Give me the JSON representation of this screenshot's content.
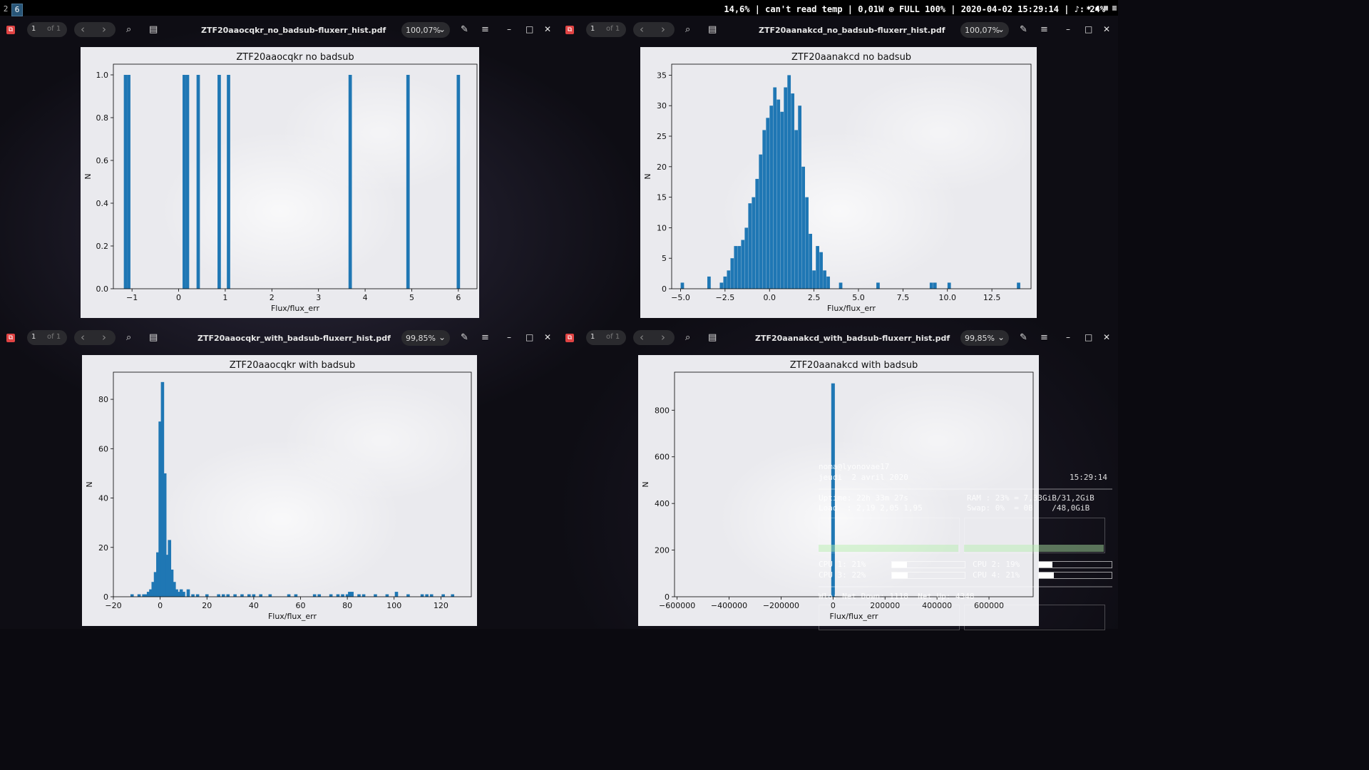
{
  "topbar": {
    "workspaces": [
      "2",
      "6"
    ],
    "status": "14,6% | can't read temp | 0,01W ⊕ FULL 100% | 2020-04-02 15:29:14 | ♪: 24%"
  },
  "windows": [
    {
      "page_num": "1",
      "page_of": "of 1",
      "filename": "ZTF20aaocqkr_no_badsub-fluxerr_hist.pdf",
      "zoom": "100,07%",
      "chart_data": {
        "type": "bar",
        "title": "ZTF20aaocqkr no badsub",
        "xlabel": "Flux/flux_err",
        "ylabel": "N",
        "xlim": [
          -1.4,
          6.4
        ],
        "ylim": [
          0,
          1.05
        ],
        "xticks": [
          -1,
          0,
          1,
          2,
          3,
          4,
          5,
          6
        ],
        "xtick_labels": [
          "−1",
          "0",
          "1",
          "2",
          "3",
          "4",
          "5",
          "6"
        ],
        "yticks": [
          0,
          0.2,
          0.4,
          0.6,
          0.8,
          1.0
        ],
        "ytick_labels": [
          "0.0",
          "0.2",
          "0.4",
          "0.6",
          "0.8",
          "1.0"
        ],
        "bin_width": 0.072,
        "bins": [
          [
            -1.14,
            1
          ],
          [
            -1.07,
            1
          ],
          [
            0.12,
            1
          ],
          [
            0.19,
            1
          ],
          [
            0.42,
            1
          ],
          [
            0.87,
            1
          ],
          [
            1.07,
            1
          ],
          [
            3.68,
            1
          ],
          [
            4.92,
            1
          ],
          [
            6.0,
            1
          ]
        ]
      }
    },
    {
      "page_num": "1",
      "page_of": "of 1",
      "filename": "ZTF20aanakcd_no_badsub-fluxerr_hist.pdf",
      "zoom": "100,07%",
      "chart_data": {
        "type": "bar",
        "title": "ZTF20aanakcd no badsub",
        "xlabel": "Flux/flux_err",
        "ylabel": "N",
        "xlim": [
          -5.5,
          14.7
        ],
        "ylim": [
          0,
          36.8
        ],
        "xticks": [
          -5,
          -2.5,
          0,
          2.5,
          5,
          7.5,
          10,
          12.5
        ],
        "xtick_labels": [
          "−5.0",
          "−2.5",
          "0.0",
          "2.5",
          "5.0",
          "7.5",
          "10.0",
          "12.5"
        ],
        "yticks": [
          0,
          5,
          10,
          15,
          20,
          25,
          30,
          35
        ],
        "ytick_labels": [
          "0",
          "5",
          "10",
          "15",
          "20",
          "25",
          "30",
          "35"
        ],
        "bin_width": 0.19,
        "bins": [
          [
            -4.9,
            1
          ],
          [
            -3.4,
            2
          ],
          [
            -2.7,
            1
          ],
          [
            -2.5,
            2
          ],
          [
            -2.3,
            3
          ],
          [
            -2.1,
            5
          ],
          [
            -1.9,
            7
          ],
          [
            -1.7,
            7
          ],
          [
            -1.5,
            8
          ],
          [
            -1.3,
            10
          ],
          [
            -1.1,
            14
          ],
          [
            -0.9,
            15
          ],
          [
            -0.7,
            18
          ],
          [
            -0.5,
            22
          ],
          [
            -0.3,
            26
          ],
          [
            -0.1,
            28
          ],
          [
            0.1,
            30
          ],
          [
            0.3,
            33
          ],
          [
            0.5,
            31
          ],
          [
            0.7,
            29
          ],
          [
            0.9,
            33
          ],
          [
            1.1,
            35
          ],
          [
            1.3,
            32
          ],
          [
            1.5,
            26
          ],
          [
            1.7,
            30
          ],
          [
            1.9,
            20
          ],
          [
            2.1,
            15
          ],
          [
            2.3,
            9
          ],
          [
            2.5,
            3
          ],
          [
            2.7,
            7
          ],
          [
            2.9,
            6
          ],
          [
            3.1,
            3
          ],
          [
            3.3,
            2
          ],
          [
            4.0,
            1
          ],
          [
            6.1,
            1
          ],
          [
            9.1,
            1
          ],
          [
            9.3,
            1
          ],
          [
            10.1,
            1
          ],
          [
            14.0,
            1
          ]
        ]
      }
    },
    {
      "page_num": "1",
      "page_of": "of 1",
      "filename": "ZTF20aaocqkr_with_badsub-fluxerr_hist.pdf",
      "zoom": "99,85%",
      "chart_data": {
        "type": "bar",
        "title": "ZTF20aaocqkr with badsub",
        "xlabel": "Flux/flux_err",
        "ylabel": "N",
        "xlim": [
          -20,
          133
        ],
        "ylim": [
          0,
          91
        ],
        "xticks": [
          -20,
          0,
          20,
          40,
          60,
          80,
          100,
          120
        ],
        "xtick_labels": [
          "−20",
          "0",
          "20",
          "40",
          "60",
          "80",
          "100",
          "120"
        ],
        "yticks": [
          0,
          20,
          40,
          60,
          80
        ],
        "ytick_labels": [
          "0",
          "20",
          "40",
          "60",
          "80"
        ],
        "bin_width": 1.4,
        "bins": [
          [
            -12,
            1
          ],
          [
            -9,
            1
          ],
          [
            -7,
            1
          ],
          [
            -6,
            1
          ],
          [
            -5,
            2
          ],
          [
            -4,
            3
          ],
          [
            -3,
            6
          ],
          [
            -2,
            10
          ],
          [
            -1,
            18
          ],
          [
            0,
            71
          ],
          [
            1,
            87
          ],
          [
            2,
            50
          ],
          [
            3,
            17
          ],
          [
            4,
            23
          ],
          [
            5,
            11
          ],
          [
            6,
            6
          ],
          [
            7,
            3
          ],
          [
            8,
            2
          ],
          [
            9,
            3
          ],
          [
            10,
            2
          ],
          [
            12,
            3
          ],
          [
            14,
            1
          ],
          [
            16,
            1
          ],
          [
            20,
            1
          ],
          [
            25,
            1
          ],
          [
            27,
            1
          ],
          [
            29,
            1
          ],
          [
            32,
            1
          ],
          [
            35,
            1
          ],
          [
            38,
            1
          ],
          [
            40,
            1
          ],
          [
            43,
            1
          ],
          [
            47,
            1
          ],
          [
            55,
            1
          ],
          [
            58,
            1
          ],
          [
            66,
            1
          ],
          [
            68,
            1
          ],
          [
            73,
            1
          ],
          [
            76,
            1
          ],
          [
            78,
            1
          ],
          [
            80,
            1
          ],
          [
            81,
            2
          ],
          [
            82,
            2
          ],
          [
            85,
            1
          ],
          [
            87,
            1
          ],
          [
            92,
            1
          ],
          [
            97,
            1
          ],
          [
            101,
            2
          ],
          [
            106,
            1
          ],
          [
            112,
            1
          ],
          [
            114,
            1
          ],
          [
            116,
            1
          ],
          [
            121,
            1
          ],
          [
            125,
            1
          ]
        ]
      }
    },
    {
      "page_num": "1",
      "page_of": "of 1",
      "filename": "ZTF20aanakcd_with_badsub-fluxerr_hist.pdf",
      "zoom": "99,85%",
      "chart_data": {
        "type": "bar",
        "title": "ZTF20aanakcd with badsub",
        "xlabel": "Flux/flux_err",
        "ylabel": "N",
        "xlim": [
          -610000,
          770000
        ],
        "ylim": [
          0,
          963
        ],
        "xticks": [
          -600000,
          -400000,
          -200000,
          0,
          200000,
          400000,
          600000
        ],
        "xtick_labels": [
          "−600000",
          "−400000",
          "−200000",
          "0",
          "200000",
          "400000",
          "600000"
        ],
        "yticks": [
          0,
          200,
          400,
          600,
          800
        ],
        "ytick_labels": [
          "0",
          "200",
          "400",
          "600",
          "800"
        ],
        "bin_width": 13800,
        "bins": [
          [
            0,
            915
          ],
          [
            -13800,
            2
          ],
          [
            13800,
            1
          ]
        ]
      }
    }
  ],
  "conky": {
    "user_host": "noma@lyonovae17",
    "date": "jeudi  2 avril 2020",
    "time": "15:29:14",
    "uptime": "Uptime: 22h 33m 27s",
    "load": "Load  : 2,19 2,05 1,95",
    "ram": "RAM : 23% = 7,33GiB/31,2GiB",
    "swap": "Swap: 0%  = 0B    /48,0GiB",
    "cpu1": "CPU 1: 21%",
    "cpu1_pct": 0.21,
    "cpu2": "CPU 2: 19%",
    "cpu2_pct": 0.19,
    "cpu3": "CPU 3: 22%",
    "cpu3_pct": 0.22,
    "cpu4": "CPU 4: 21%",
    "cpu4_pct": 0.21,
    "net": "Wlo: Net Down: 1118  Net Up: 4348"
  }
}
